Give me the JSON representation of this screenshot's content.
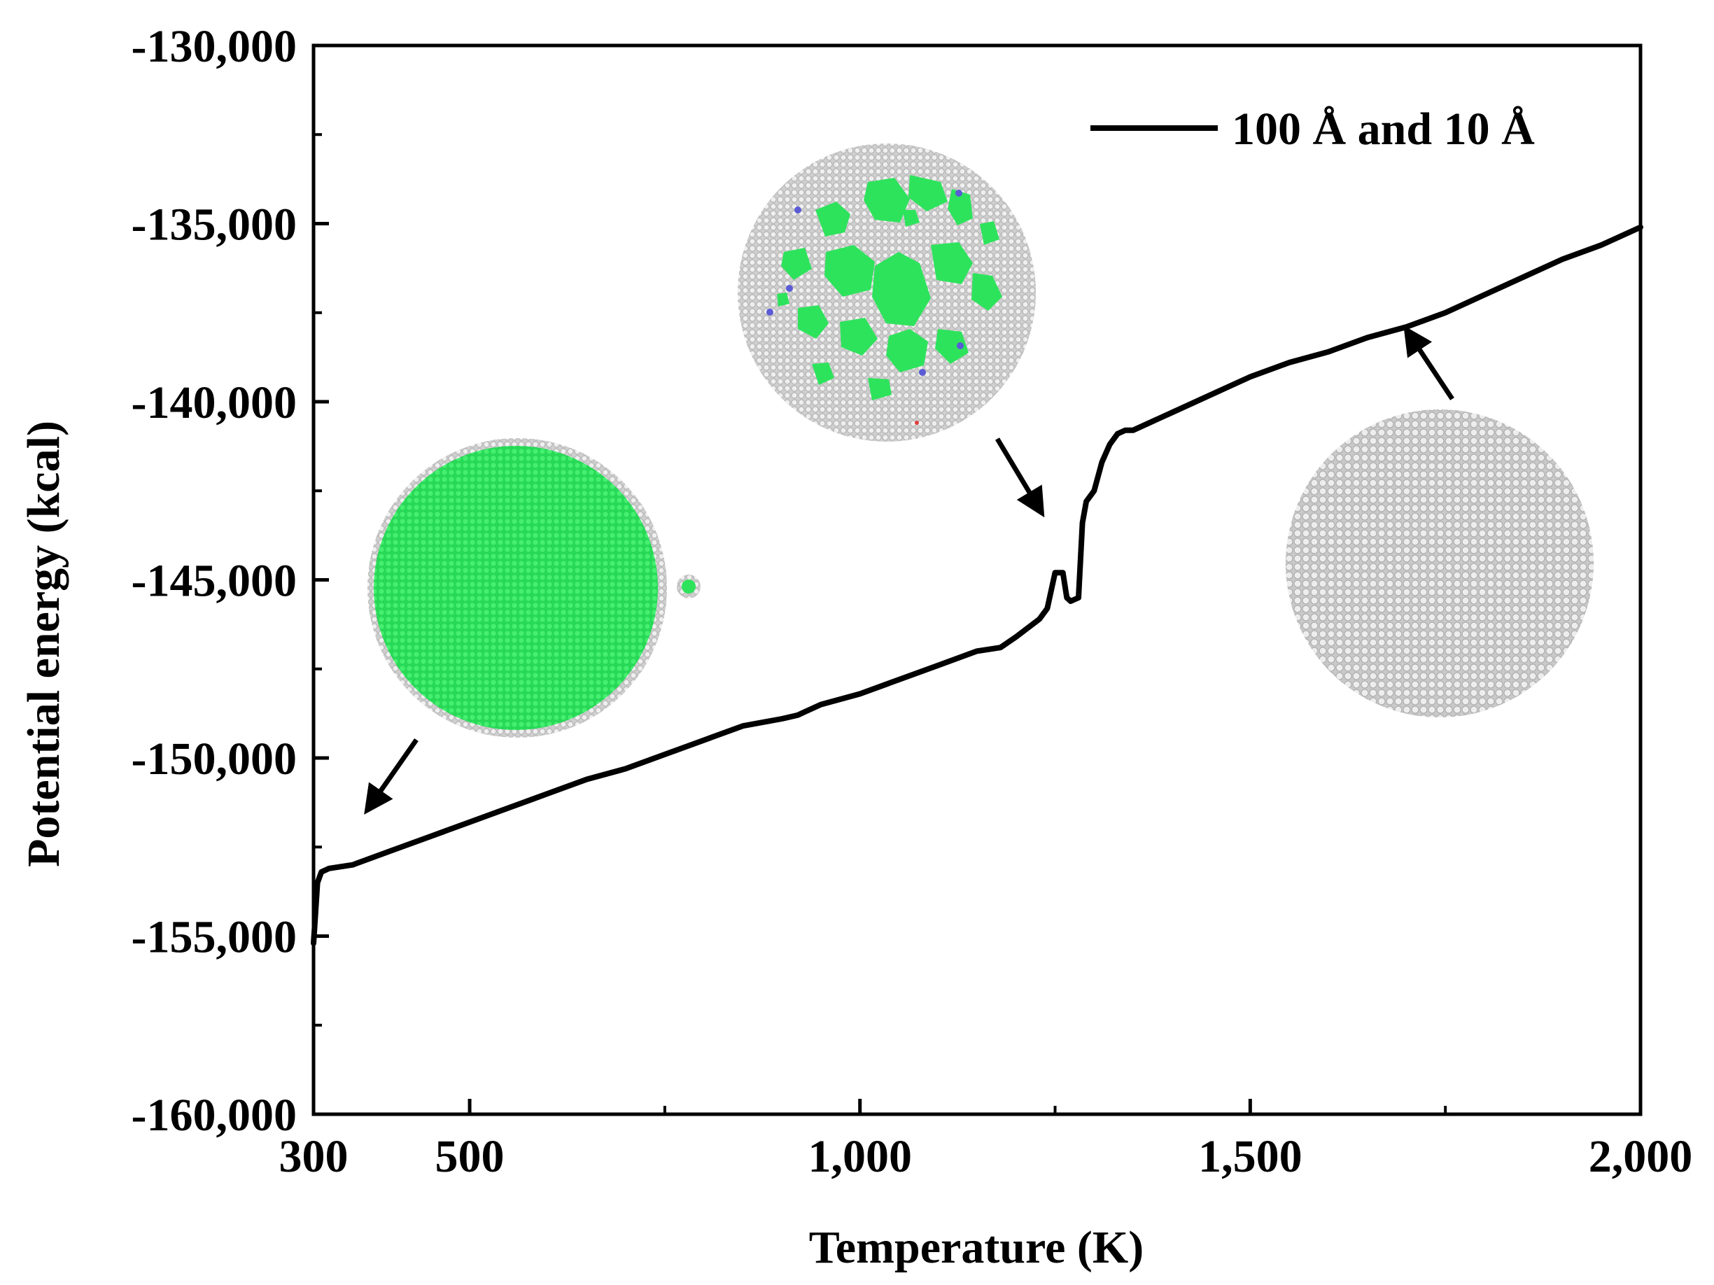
{
  "chart_data": {
    "type": "line",
    "title": "",
    "xlabel": "Temperature (K)",
    "ylabel": "Potential energy (kcal)",
    "xlim": [
      300,
      2000
    ],
    "ylim": [
      -160000,
      -130000
    ],
    "x_ticks": [
      300,
      500,
      1000,
      1500,
      2000
    ],
    "x_tick_labels": [
      "300",
      "500",
      "1,000",
      "1,500",
      "2,000"
    ],
    "y_ticks": [
      -160000,
      -155000,
      -150000,
      -145000,
      -140000,
      -135000,
      -130000
    ],
    "y_tick_labels": [
      "-160,000",
      "-155,000",
      "-150,000",
      "-145,000",
      "-140,000",
      "-135,000",
      "-130,000"
    ],
    "legend_position": "top-right",
    "series": [
      {
        "name": "100 Å and 10 Å",
        "color": "#000000",
        "x": [
          300,
          305,
          310,
          320,
          350,
          400,
          450,
          500,
          550,
          600,
          650,
          700,
          750,
          800,
          850,
          900,
          920,
          930,
          950,
          1000,
          1050,
          1100,
          1150,
          1180,
          1200,
          1230,
          1240,
          1250,
          1260,
          1265,
          1270,
          1280,
          1285,
          1290,
          1300,
          1310,
          1320,
          1330,
          1340,
          1350,
          1400,
          1450,
          1500,
          1550,
          1600,
          1650,
          1700,
          1750,
          1800,
          1850,
          1900,
          1950,
          2000
        ],
        "y": [
          -155200,
          -153500,
          -153200,
          -153100,
          -153000,
          -152600,
          -152200,
          -151800,
          -151400,
          -151000,
          -150600,
          -150300,
          -149900,
          -149500,
          -149100,
          -148900,
          -148800,
          -148700,
          -148500,
          -148200,
          -147800,
          -147400,
          -147000,
          -146900,
          -146600,
          -146100,
          -145800,
          -144800,
          -144800,
          -145500,
          -145600,
          -145500,
          -143400,
          -142800,
          -142500,
          -141700,
          -141200,
          -140900,
          -140800,
          -140800,
          -140300,
          -139800,
          -139300,
          -138900,
          -138600,
          -138200,
          -137900,
          -137500,
          -137000,
          -136500,
          -136000,
          -135600,
          -135100
        ]
      }
    ],
    "insets": [
      {
        "name": "low-temperature-crystal",
        "colors": [
          "#2ee35c",
          "#d4d4d4"
        ]
      },
      {
        "name": "transition-partially-ordered",
        "colors": [
          "#2ee35c",
          "#d4d4d4",
          "#5b5bd6"
        ]
      },
      {
        "name": "high-temperature-liquid",
        "colors": [
          "#d4d4d4"
        ]
      }
    ]
  }
}
